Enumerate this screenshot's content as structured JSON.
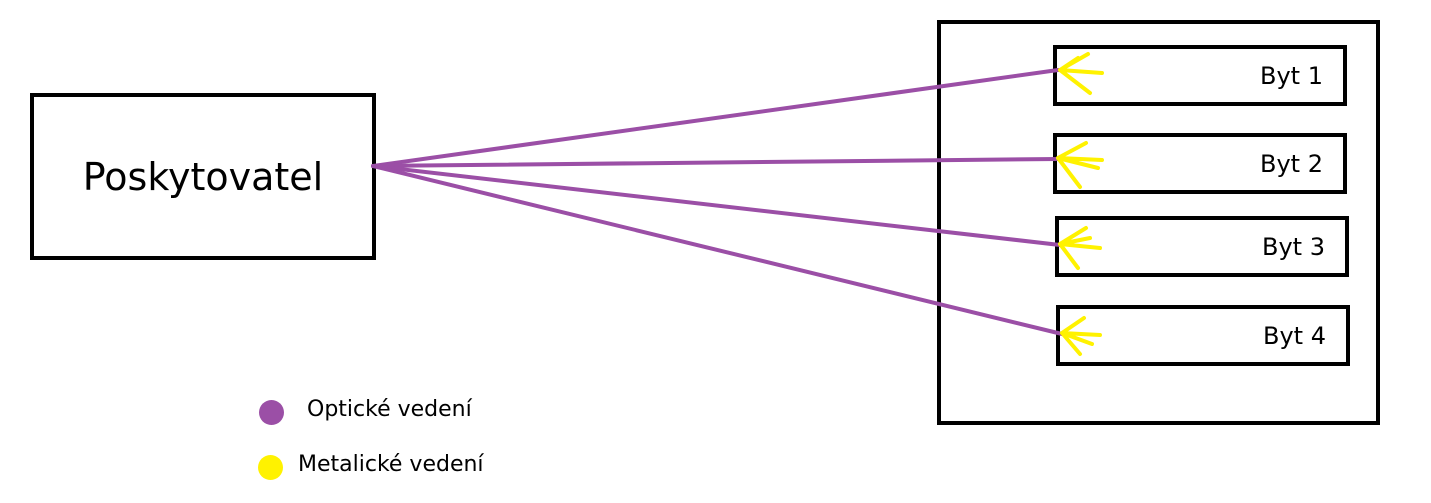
{
  "provider": {
    "label": "Poskytovatel"
  },
  "apartments": [
    {
      "label": "Byt 1"
    },
    {
      "label": "Byt 2"
    },
    {
      "label": "Byt 3"
    },
    {
      "label": "Byt 4"
    }
  ],
  "legend": [
    {
      "label": "Optické vedení",
      "color": "#9b4fa6"
    },
    {
      "label": "Metalické vedení",
      "color": "#fff200"
    }
  ],
  "colors": {
    "optical": "#9b4fa6",
    "metallic": "#fff200",
    "border": "#000000"
  }
}
